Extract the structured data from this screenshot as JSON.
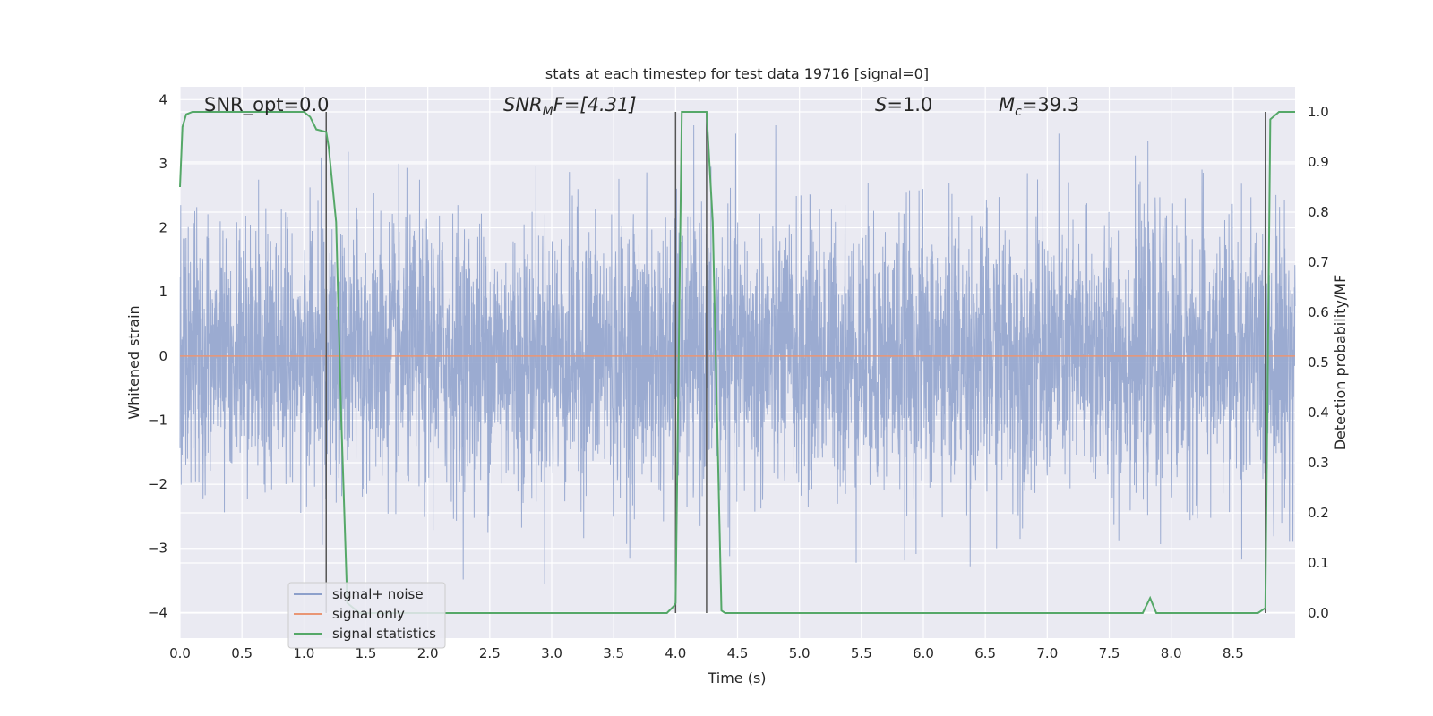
{
  "chart_data": {
    "type": "line",
    "title": "stats at each timestep for test data 19716 [signal=0]",
    "xlabel": "Time (s)",
    "ylabel": "Whitened strain",
    "y2label": "Detection probability/MF",
    "xlim": [
      0.0,
      9.0
    ],
    "ylim": [
      -4.4,
      4.2
    ],
    "y2lim": [
      -0.05,
      1.05
    ],
    "x_ticks": [
      "0.0",
      "0.5",
      "1.0",
      "1.5",
      "2.0",
      "2.5",
      "3.0",
      "3.5",
      "4.0",
      "4.5",
      "5.0",
      "5.5",
      "6.0",
      "6.5",
      "7.0",
      "7.5",
      "8.0",
      "8.5"
    ],
    "y_ticks": [
      "4",
      "3",
      "2",
      "1",
      "0",
      "−1",
      "−2",
      "−3",
      "−4"
    ],
    "y2_ticks": [
      "1.0",
      "0.9",
      "0.8",
      "0.7",
      "0.6",
      "0.5",
      "0.4",
      "0.3",
      "0.2",
      "0.1",
      "0.0"
    ],
    "grid": true,
    "legend_position": "lower left",
    "annotations": {
      "snr_opt": "SNR_opt=0.0",
      "snr_mf_main": "SNR",
      "snr_mf_sub": "M",
      "snr_mf_rest": "F=[4.31]",
      "s_main": "S",
      "s_rest": "=1.0",
      "mc_main": "M",
      "mc_sub": "c",
      "mc_rest": "=39.3"
    },
    "series": [
      {
        "name": "signal+ noise",
        "color": "#8da0cb",
        "description_values": "whitened noise, approx. Gaussian, amplitude within [-3.8, 3.6]",
        "sample_rate_hz": 2048,
        "duration_s": 9.0
      },
      {
        "name": "signal only",
        "color": "#e99675",
        "x": [
          0.0,
          9.0
        ],
        "y": [
          0.0,
          0.0
        ]
      },
      {
        "name": "signal statistics",
        "color": "#55a868",
        "axis": "right",
        "x": [
          0.0,
          0.02,
          0.05,
          0.1,
          0.2,
          0.3,
          0.5,
          0.7,
          0.9,
          1.0,
          1.05,
          1.1,
          1.18,
          1.2,
          1.26,
          1.3,
          1.35,
          1.45,
          1.6,
          2.0,
          2.5,
          3.0,
          3.5,
          3.93,
          3.99,
          4.0,
          4.05,
          4.25,
          4.3,
          4.37,
          4.4,
          4.5,
          5.0,
          6.0,
          7.0,
          7.77,
          7.83,
          7.88,
          8.0,
          8.5,
          8.7,
          8.76,
          8.8,
          8.87,
          9.0
        ],
        "y": [
          0.85,
          0.97,
          0.995,
          1.0,
          1.0,
          1.0,
          1.0,
          1.0,
          1.0,
          1.0,
          0.99,
          0.965,
          0.96,
          0.93,
          0.78,
          0.4,
          0.02,
          0.0,
          0.0,
          0.0,
          0.0,
          0.0,
          0.0,
          0.0,
          0.015,
          0.02,
          1.0,
          1.0,
          0.78,
          0.005,
          0.0,
          0.0,
          0.0,
          0.0,
          0.0,
          0.0,
          0.03,
          0.0,
          0.0,
          0.0,
          0.0,
          0.01,
          0.985,
          1.0,
          1.0
        ]
      }
    ],
    "vertical_markers": [
      {
        "x": 1.18,
        "color": "#555555"
      },
      {
        "x": 4.0,
        "color": "#555555"
      },
      {
        "x": 4.25,
        "color": "#555555"
      },
      {
        "x": 8.76,
        "color": "#555555"
      }
    ]
  },
  "colors": {
    "plot_background": "#eaeaf2",
    "grid": "#ffffff",
    "text": "#262626"
  }
}
